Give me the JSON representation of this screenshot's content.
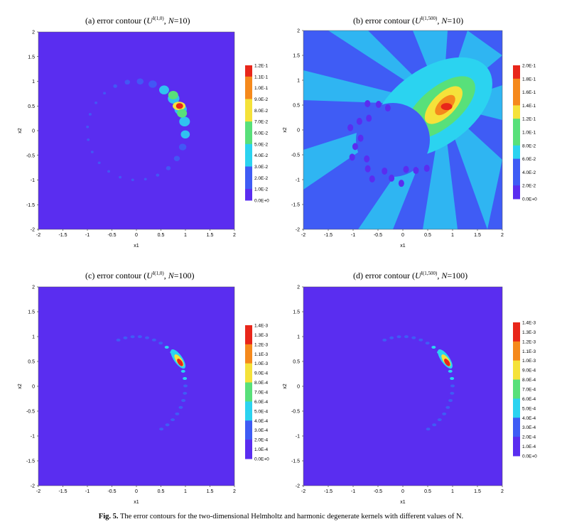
{
  "caption": {
    "label": "Fig. 5.",
    "text": "The error contours for the two-dimensional Helmholtz and harmonic degenerate kernels with different values of N."
  },
  "chart_data": [
    {
      "type": "heatmap",
      "id": "a",
      "title": {
        "prefix": "(a) error contour (",
        "sym": "U",
        "sup": "I(1,0)",
        "mid": ", ",
        "n": "N",
        "suffix": "=10)"
      },
      "xlabel": "x1",
      "ylabel": "x2",
      "xlim": [
        -2,
        2
      ],
      "ylim": [
        -2,
        2
      ],
      "xticks": [
        "-2",
        "-1.5",
        "-1",
        "-0.5",
        "0",
        "0.5",
        "1",
        "1.5",
        "2"
      ],
      "yticks": [
        "2",
        "1.5",
        "1",
        "0.5",
        "0",
        "-0.5",
        "-1",
        "-1.5",
        "-2"
      ],
      "colorbar": [
        "1.2E-1",
        "1.1E-1",
        "1.0E-1",
        "9.0E-2",
        "8.0E-2",
        "7.0E-2",
        "6.0E-2",
        "5.0E-2",
        "4.0E-2",
        "3.0E-2",
        "2.0E-2",
        "1.0E-2",
        "0.0E+0"
      ],
      "max_error_location": [
        0.88,
        0.5
      ]
    },
    {
      "type": "heatmap",
      "id": "b",
      "title": {
        "prefix": "(b) error contour (",
        "sym": "U",
        "sup": "I(1,500)",
        "mid": ", ",
        "n": "N",
        "suffix": "=10)"
      },
      "xlabel": "x1",
      "ylabel": "x2",
      "xlim": [
        -2,
        2
      ],
      "ylim": [
        -2,
        2
      ],
      "xticks": [
        "-2",
        "-1.5",
        "-1",
        "-0.5",
        "0",
        "0.5",
        "1",
        "1.5",
        "2"
      ],
      "yticks": [
        "2",
        "1.5",
        "1",
        "0.5",
        "0",
        "-0.5",
        "-1",
        "-1.5",
        "-2"
      ],
      "colorbar": [
        "2.0E-1",
        "1.8E-1",
        "1.6E-1",
        "1.4E-1",
        "1.2E-1",
        "1.0E-1",
        "8.0E-2",
        "6.0E-2",
        "4.0E-2",
        "2.0E-2",
        "0.0E+0"
      ],
      "max_error_location": [
        0.85,
        0.5
      ]
    },
    {
      "type": "heatmap",
      "id": "c",
      "title": {
        "prefix": "(c) error contour (",
        "sym": "U",
        "sup": "I(1,0)",
        "mid": ", ",
        "n": "N",
        "suffix": "=100)"
      },
      "xlabel": "x1",
      "ylabel": "x2",
      "xlim": [
        -2,
        2
      ],
      "ylim": [
        -2,
        2
      ],
      "xticks": [
        "-2",
        "-1.5",
        "-1",
        "-0.5",
        "0",
        "0.5",
        "1",
        "1.5",
        "2"
      ],
      "yticks": [
        "2",
        "1.5",
        "1",
        "0.5",
        "0",
        "-0.5",
        "-1",
        "-1.5",
        "-2"
      ],
      "colorbar": [
        "1.4E-3",
        "1.3E-3",
        "1.2E-3",
        "1.1E-3",
        "1.0E-3",
        "9.0E-4",
        "8.0E-4",
        "7.0E-4",
        "6.0E-4",
        "5.0E-4",
        "4.0E-4",
        "3.0E-4",
        "2.0E-4",
        "1.0E-4",
        "0.0E+0"
      ],
      "max_error_location": [
        0.88,
        0.5
      ]
    },
    {
      "type": "heatmap",
      "id": "d",
      "title": {
        "prefix": "(d) error contour (",
        "sym": "U",
        "sup": "I(1,500)",
        "mid": ", ",
        "n": "N",
        "suffix": "=100)"
      },
      "xlabel": "x1",
      "ylabel": "x2",
      "xlim": [
        -2,
        2
      ],
      "ylim": [
        -2,
        2
      ],
      "xticks": [
        "-2",
        "-1.5",
        "-1",
        "-0.5",
        "0",
        "0.5",
        "1",
        "1.5",
        "2"
      ],
      "yticks": [
        "2",
        "1.5",
        "1",
        "0.5",
        "0",
        "-0.5",
        "-1",
        "-1.5",
        "-2"
      ],
      "colorbar": [
        "1.4E-3",
        "1.3E-3",
        "1.2E-3",
        "1.1E-3",
        "1.0E-3",
        "9.0E-4",
        "8.0E-4",
        "7.0E-4",
        "6.0E-4",
        "5.0E-4",
        "4.0E-4",
        "3.0E-4",
        "2.0E-4",
        "1.0E-4",
        "0.0E+0"
      ],
      "max_error_location": [
        0.88,
        0.5
      ]
    }
  ],
  "colors": {
    "background": "#5a2df0",
    "blue": "#3f5cf5",
    "cyan": "#2bd3f0",
    "green": "#58e07a",
    "yellow": "#f5e23a",
    "orange": "#f5891c",
    "red": "#e8261a"
  }
}
